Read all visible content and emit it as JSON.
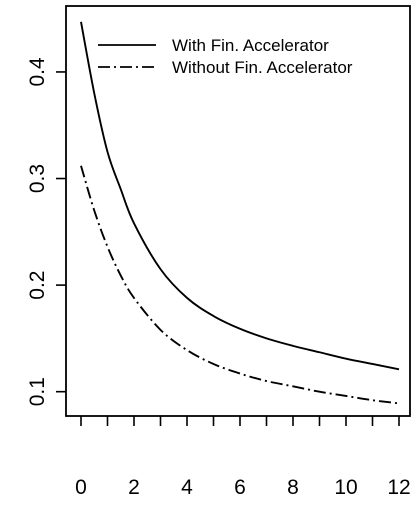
{
  "chart_data": {
    "type": "line",
    "title": "",
    "xlabel": "",
    "ylabel": "",
    "xlim": [
      0,
      12
    ],
    "ylim": [
      0.08,
      0.46
    ],
    "x_ticks": [
      0,
      2,
      4,
      6,
      8,
      10,
      12
    ],
    "x_tick_labels": [
      "0",
      "2",
      "4",
      "6",
      "8",
      "10",
      "12"
    ],
    "y_ticks": [
      0.1,
      0.2,
      0.3,
      0.4
    ],
    "y_tick_labels": [
      "0.1",
      "0.2",
      "0.3",
      "0.4"
    ],
    "grid": false,
    "legend_position": "top-right",
    "x": [
      0,
      0.5,
      1,
      1.5,
      2,
      3,
      4,
      5,
      6,
      7,
      8,
      9,
      10,
      11,
      12
    ],
    "series": [
      {
        "name": "With Fin. Accelerator",
        "line_style": "solid",
        "color": "#000000",
        "values": [
          0.447,
          0.38,
          0.325,
          0.29,
          0.258,
          0.215,
          0.188,
          0.171,
          0.159,
          0.15,
          0.143,
          0.137,
          0.131,
          0.126,
          0.121
        ]
      },
      {
        "name": "Without Fin. Accelerator",
        "line_style": "dashdot",
        "color": "#000000",
        "values": [
          0.312,
          0.27,
          0.236,
          0.209,
          0.188,
          0.158,
          0.139,
          0.126,
          0.117,
          0.11,
          0.105,
          0.1,
          0.096,
          0.092,
          0.089
        ]
      }
    ]
  }
}
